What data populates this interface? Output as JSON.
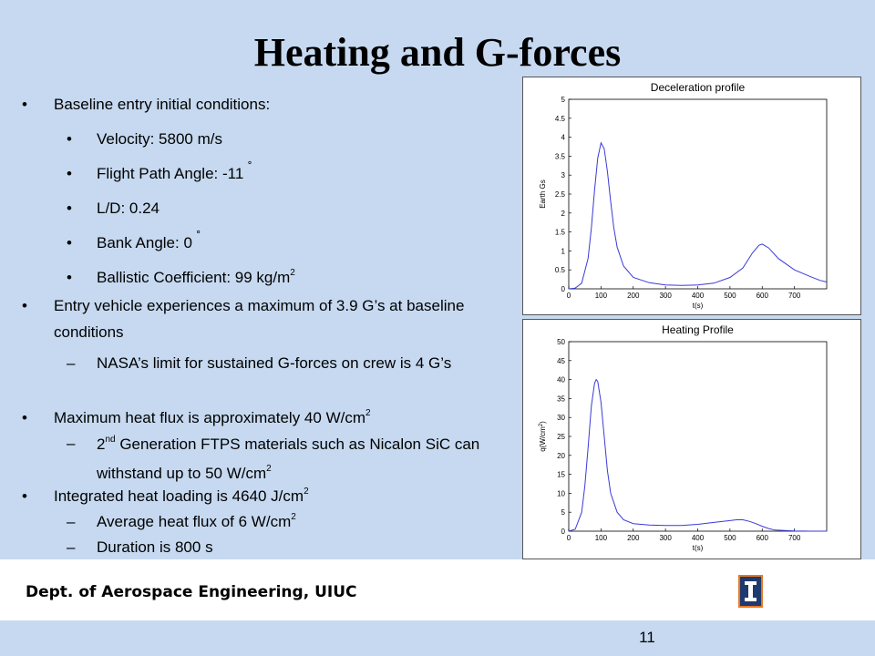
{
  "title": "Heating and G-forces",
  "bullets": {
    "b1": "Baseline entry initial conditions:",
    "b1a": "Velocity: 5800 m/s",
    "b1b": "Flight Path Angle: -11",
    "b1b_deg": "˚",
    "b1c": "L/D: 0.24",
    "b1d": "Bank Angle: 0",
    "b1d_deg": "˚",
    "b1e": "Ballistic Coefficient: 99 kg/m",
    "b1e_sup": "2",
    "b2": "Entry vehicle experiences a maximum of 3.9 G’s at baseline conditions",
    "b2a": "NASA’s limit for sustained G-forces on crew is 4 G’s",
    "b3": "Maximum heat flux is approximately 40 W/cm",
    "b3_sup": "2",
    "b3a_pre": "2",
    "b3a_sup": "nd",
    "b3a": " Generation FTPS materials such as Nicalon SiC can withstand up to 50 W/cm",
    "b3a_sup2": "2",
    "b4": "Integrated heat loading is 4640 J/cm",
    "b4_sup": "2",
    "b4a": "Average heat flux of 6 W/cm",
    "b4a_sup": "2",
    "b4b": "Duration is 800 s"
  },
  "footer": {
    "dept": "Dept. of Aerospace Engineering, UIUC",
    "page": "11"
  },
  "colors": {
    "background": "#c6d9f0",
    "series": "#3a3ad8",
    "logo_blue": "#1f3a6e",
    "logo_orange": "#e87722"
  },
  "chart_data": [
    {
      "type": "line",
      "title": "Deceleration profile",
      "xlabel": "t(s)",
      "ylabel": "Earth Gs",
      "xlim": [
        0,
        800
      ],
      "ylim": [
        0,
        5
      ],
      "xticks": [
        "0",
        "100",
        "200",
        "300",
        "400",
        "500",
        "600",
        "700"
      ],
      "yticks": [
        "0",
        "0.5",
        "1",
        "1.5",
        "2",
        "2.5",
        "3",
        "3.5",
        "4",
        "4.5",
        "5"
      ],
      "x": [
        0,
        20,
        40,
        60,
        70,
        80,
        90,
        100,
        110,
        120,
        130,
        140,
        150,
        170,
        200,
        250,
        300,
        350,
        400,
        450,
        500,
        540,
        570,
        590,
        600,
        620,
        650,
        700,
        750,
        780,
        800
      ],
      "series": [
        {
          "values": [
            0,
            0.02,
            0.15,
            0.8,
            1.6,
            2.6,
            3.45,
            3.85,
            3.7,
            3.1,
            2.3,
            1.6,
            1.1,
            0.6,
            0.3,
            0.16,
            0.1,
            0.09,
            0.1,
            0.15,
            0.3,
            0.55,
            0.95,
            1.15,
            1.18,
            1.08,
            0.8,
            0.5,
            0.32,
            0.22,
            0.18
          ]
        }
      ]
    },
    {
      "type": "line",
      "title": "Heating Profile",
      "xlabel": "t(s)",
      "ylabel": "q(W/cm",
      "ylabel_sup": "2",
      "ylabel_end": ")",
      "xlim": [
        0,
        800
      ],
      "ylim": [
        0,
        50
      ],
      "xticks": [
        "0",
        "100",
        "200",
        "300",
        "400",
        "500",
        "600",
        "700"
      ],
      "yticks": [
        "0",
        "5",
        "10",
        "15",
        "20",
        "25",
        "30",
        "35",
        "40",
        "45",
        "50"
      ],
      "x": [
        0,
        20,
        40,
        50,
        60,
        70,
        80,
        85,
        90,
        100,
        110,
        120,
        130,
        150,
        170,
        200,
        250,
        300,
        350,
        400,
        450,
        500,
        520,
        540,
        560,
        580,
        600,
        620,
        640,
        700,
        750,
        800
      ],
      "series": [
        {
          "values": [
            0,
            0.5,
            5,
            12,
            22,
            33,
            39,
            40,
            39.5,
            34,
            25,
            16,
            10,
            5,
            3,
            2,
            1.6,
            1.5,
            1.5,
            1.8,
            2.3,
            2.8,
            3,
            3,
            2.6,
            2,
            1.3,
            0.7,
            0.3,
            0.05,
            0,
            0
          ]
        }
      ]
    }
  ]
}
